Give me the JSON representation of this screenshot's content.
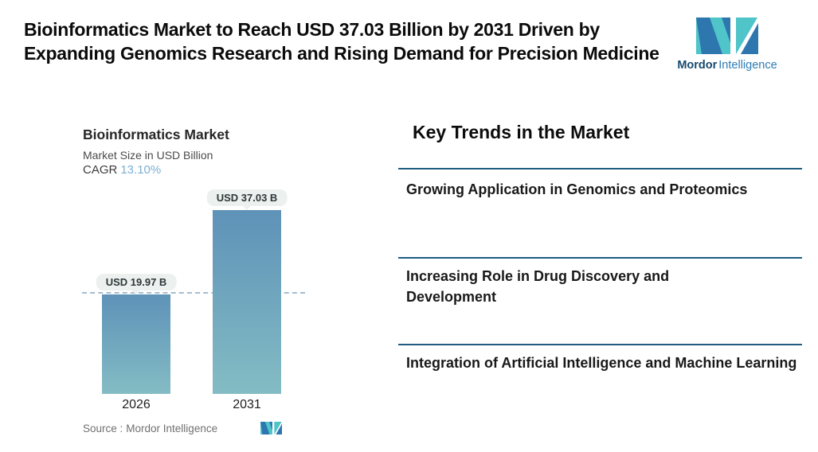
{
  "header": {
    "title": "Bioinformatics Market to Reach USD 37.03 Billion by 2031 Driven by Expanding Genomics Research and Rising Demand for Precision Medicine",
    "logo": {
      "icon": "mordor-mi-monogram-icon",
      "brand_bold": "Mordor",
      "brand_light": "Intelligence"
    }
  },
  "chart": {
    "title": "Bioinformatics Market",
    "subtitle": "Market Size in USD Billion",
    "cagr_label": "CAGR",
    "cagr_value": "13.10%",
    "source_label": "Source :",
    "source_value": "Mordor Intelligence"
  },
  "chart_data": {
    "type": "bar",
    "title": "Bioinformatics Market",
    "subtitle": "Market Size in USD Billion",
    "cagr": "13.10%",
    "categories": [
      "2026",
      "2031"
    ],
    "values": [
      19.97,
      37.03
    ],
    "value_labels": [
      "USD 19.97 B",
      "USD 37.03 B"
    ],
    "unit": "USD Billion",
    "ylim": [
      0,
      40
    ],
    "reference_line": 19.97,
    "grid": false,
    "legend": false,
    "bar_gradient_top": "#5E92B8",
    "bar_gradient_bottom": "#84BCC4"
  },
  "trends": {
    "heading": "Key Trends in the Market",
    "items": [
      "Growing Application in Genomics and Proteomics",
      "Increasing Role in Drug Discovery and Development",
      "Integration of Artificial Intelligence and Machine Learning"
    ]
  },
  "colors": {
    "brand_teal": "#4FC4C9",
    "brand_blue": "#2E76AE",
    "brand_navy": "#16486F",
    "divider": "#1E5D80",
    "cagr_value": "#7CB0D4",
    "dashed_line": "#A4BDCE",
    "callout_bg": "#ECF1EF"
  }
}
